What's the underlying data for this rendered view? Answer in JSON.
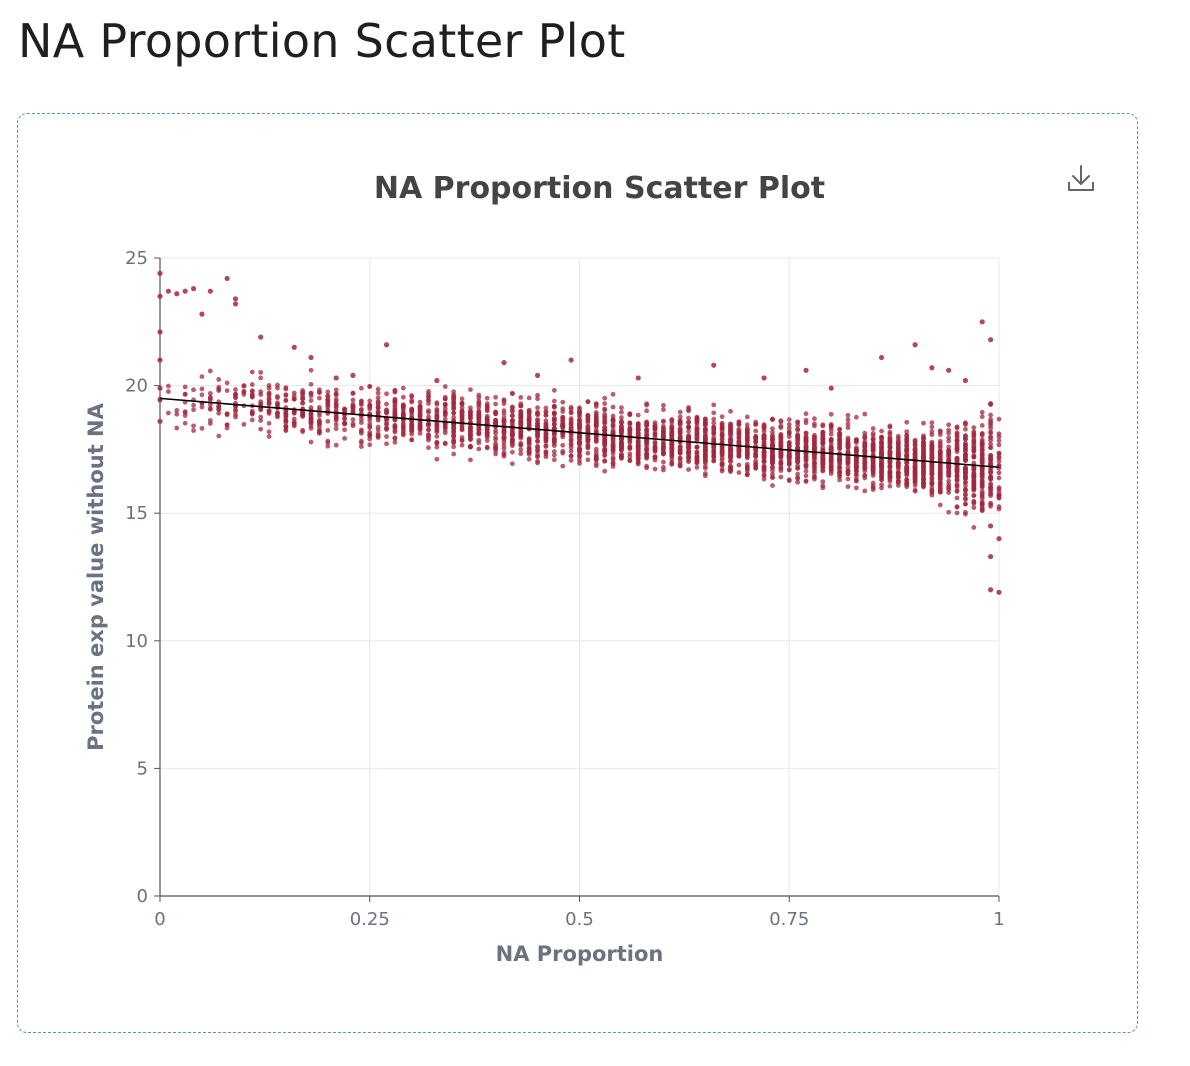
{
  "page": {
    "title": "NA Proportion Scatter Plot"
  },
  "toolbar": {
    "download_icon": "download-icon"
  },
  "chart_data": {
    "type": "scatter",
    "title": "NA Proportion Scatter Plot",
    "xlabel": "NA Proportion",
    "ylabel": "Protein exp value without NA",
    "xlim": [
      0,
      1
    ],
    "ylim": [
      0,
      25
    ],
    "x_ticks": [
      "0",
      "0.25",
      "0.5",
      "0.75",
      "1"
    ],
    "y_ticks": [
      "0",
      "5",
      "10",
      "15",
      "20",
      "25"
    ],
    "grid": true,
    "point_color": "#a3283f",
    "trend_color": "#000000",
    "series": [
      {
        "type": "scatter",
        "x": [
          0,
          0,
          0,
          0,
          0,
          0,
          0.01,
          0.02,
          0.03,
          0.04,
          0.05,
          0.06,
          0.08,
          0.09,
          0.09,
          0.12,
          0.16,
          0.18,
          0.21,
          0.23,
          0.27,
          0.33,
          0.41,
          0.45,
          0.49,
          0.57,
          0.66,
          0.72,
          0.77,
          0.8,
          0.86,
          0.9,
          0.92,
          0.94,
          0.96,
          0.98,
          0.99,
          0.99,
          0.99,
          0.99,
          1,
          1
        ],
        "y": [
          24.4,
          23.5,
          22.1,
          21.0,
          19.9,
          18.6,
          23.7,
          23.6,
          23.7,
          23.8,
          22.8,
          23.7,
          24.2,
          23.4,
          23.2,
          21.9,
          21.5,
          21.1,
          20.3,
          20.4,
          21.6,
          20.2,
          20.9,
          20.4,
          21.0,
          20.3,
          20.8,
          20.3,
          20.6,
          19.9,
          21.1,
          21.6,
          20.7,
          20.6,
          20.2,
          22.5,
          21.8,
          14.5,
          13.3,
          12.0,
          11.9,
          14.0
        ]
      },
      {
        "type": "line",
        "name": "",
        "x": [
          0,
          1
        ],
        "y": [
          19.5,
          16.8
        ]
      }
    ]
  }
}
